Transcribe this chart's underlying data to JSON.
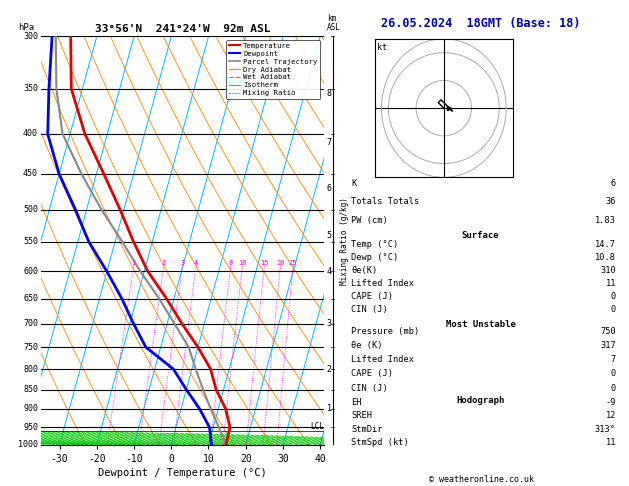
{
  "title_left": "33°56'N  241°24'W  92m ASL",
  "title_right": "26.05.2024  18GMT (Base: 18)",
  "xlabel": "Dewpoint / Temperature (°C)",
  "copyright": "© weatheronline.co.uk",
  "pressure_levels": [
    300,
    350,
    400,
    450,
    500,
    550,
    600,
    650,
    700,
    750,
    800,
    850,
    900,
    950,
    1000
  ],
  "temp_ticks": [
    -30,
    -20,
    -10,
    0,
    10,
    20,
    30,
    40
  ],
  "T_min": -35,
  "T_max": 41,
  "P_min": 300,
  "P_max": 1000,
  "skew": 30,
  "isotherm_color": "#00BBFF",
  "dry_adiabat_color": "#FF8800",
  "wet_adiabat_color": "#00CC00",
  "mixing_ratio_color": "#FF00FF",
  "mixing_ratio_values": [
    1,
    2,
    3,
    4,
    8,
    10,
    15,
    20,
    25
  ],
  "temp_profile_T": [
    14.7,
    14.5,
    12.0,
    8.0,
    5.0,
    0.0,
    -6.0,
    -12.0,
    -19.0,
    -25.0,
    -31.0,
    -38.0,
    -46.0,
    -53.0,
    -57.0
  ],
  "temp_profile_P": [
    1000,
    950,
    900,
    850,
    800,
    750,
    700,
    650,
    600,
    550,
    500,
    450,
    400,
    350,
    300
  ],
  "dewp_profile_T": [
    10.8,
    9.0,
    5.0,
    0.0,
    -5.0,
    -14.0,
    -19.0,
    -24.0,
    -30.0,
    -37.0,
    -43.0,
    -50.0,
    -56.0,
    -59.0,
    -62.0
  ],
  "dewp_profile_P": [
    1000,
    950,
    900,
    850,
    800,
    750,
    700,
    650,
    600,
    550,
    500,
    450,
    400,
    350,
    300
  ],
  "parcel_T": [
    14.7,
    11.5,
    8.0,
    4.5,
    1.0,
    -2.5,
    -8.0,
    -14.0,
    -21.0,
    -28.0,
    -36.0,
    -44.0,
    -52.0,
    -57.0,
    -61.0
  ],
  "parcel_P": [
    1000,
    950,
    900,
    850,
    800,
    750,
    700,
    650,
    600,
    550,
    500,
    450,
    400,
    350,
    300
  ],
  "lcl_pressure": 960,
  "temp_color": "#DD0000",
  "dewp_color": "#0000EE",
  "parcel_color": "#888888",
  "alt_km": [
    8,
    7,
    6,
    5,
    4,
    3,
    2,
    1
  ],
  "alt_pressures": [
    355,
    410,
    470,
    540,
    600,
    700,
    800,
    900
  ],
  "stats": {
    "K": 6,
    "Totals_Totals": 36,
    "PW_cm": 1.83,
    "Surface_Temp": 14.7,
    "Surface_Dewp": 10.8,
    "Surface_theta_e": 310,
    "Surface_LI": 11,
    "Surface_CAPE": 0,
    "Surface_CIN": 0,
    "MU_Pressure": 750,
    "MU_theta_e": 317,
    "MU_LI": 7,
    "MU_CAPE": 0,
    "MU_CIN": 0,
    "EH": -9,
    "SREH": 12,
    "StmDir": 313,
    "StmSpd": 11
  }
}
